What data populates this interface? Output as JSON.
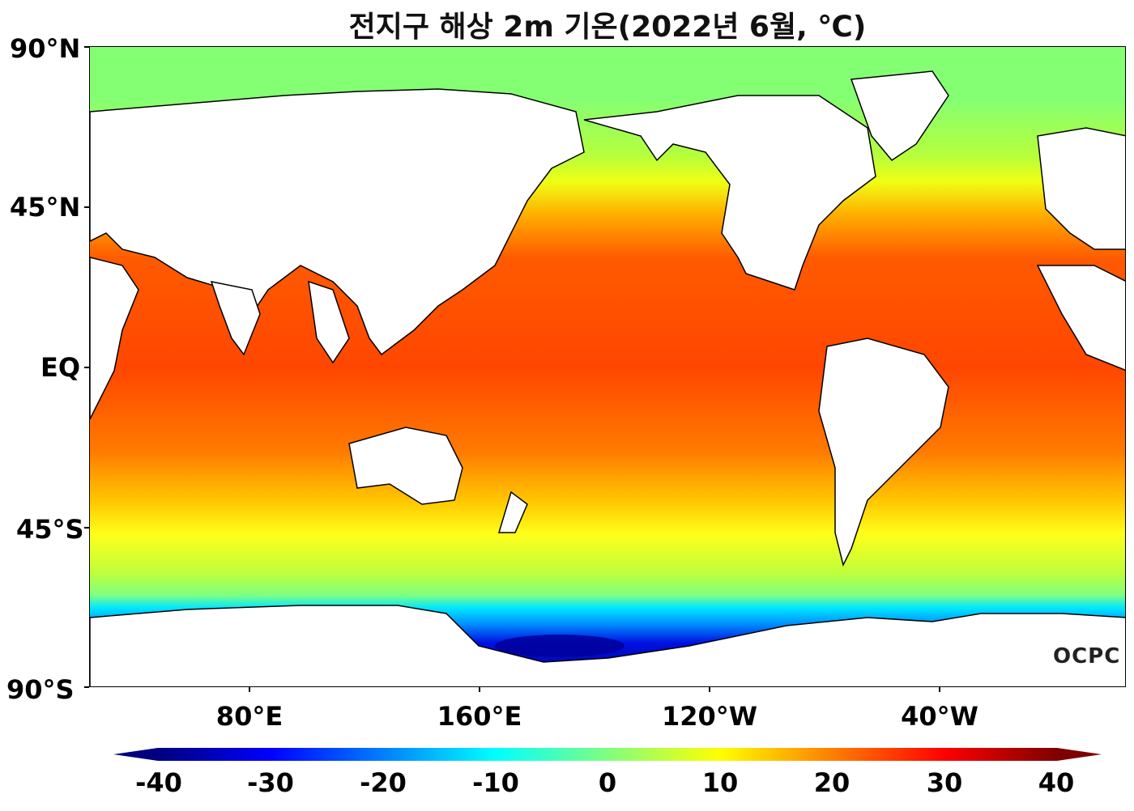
{
  "title": "전지구 해상 2m 기온(2022년 6월, ℃)",
  "latitude_labels": [
    "90°N",
    "45°N",
    "EQ",
    "45°S",
    "90°S"
  ],
  "longitude_labels": [
    "80°E",
    "160°E",
    "120°W",
    "40°W"
  ],
  "colorbar": {
    "ticks": [
      "-40",
      "-30",
      "-20",
      "-10",
      "0",
      "10",
      "20",
      "30",
      "40"
    ],
    "colors": [
      "#00007f",
      "#0000ff",
      "#007fff",
      "#00ffff",
      "#7fff7f",
      "#ffff00",
      "#ff7f00",
      "#ff0000",
      "#7f0000"
    ]
  },
  "logo": "OCPC",
  "map_colors": {
    "land": "#ffffff",
    "coast": "#000000",
    "arctic": "#84ff74",
    "tropics": "#ff4a00",
    "southern_ocean": "#ffff1a",
    "antarctic_coast": "#0010e0"
  }
}
